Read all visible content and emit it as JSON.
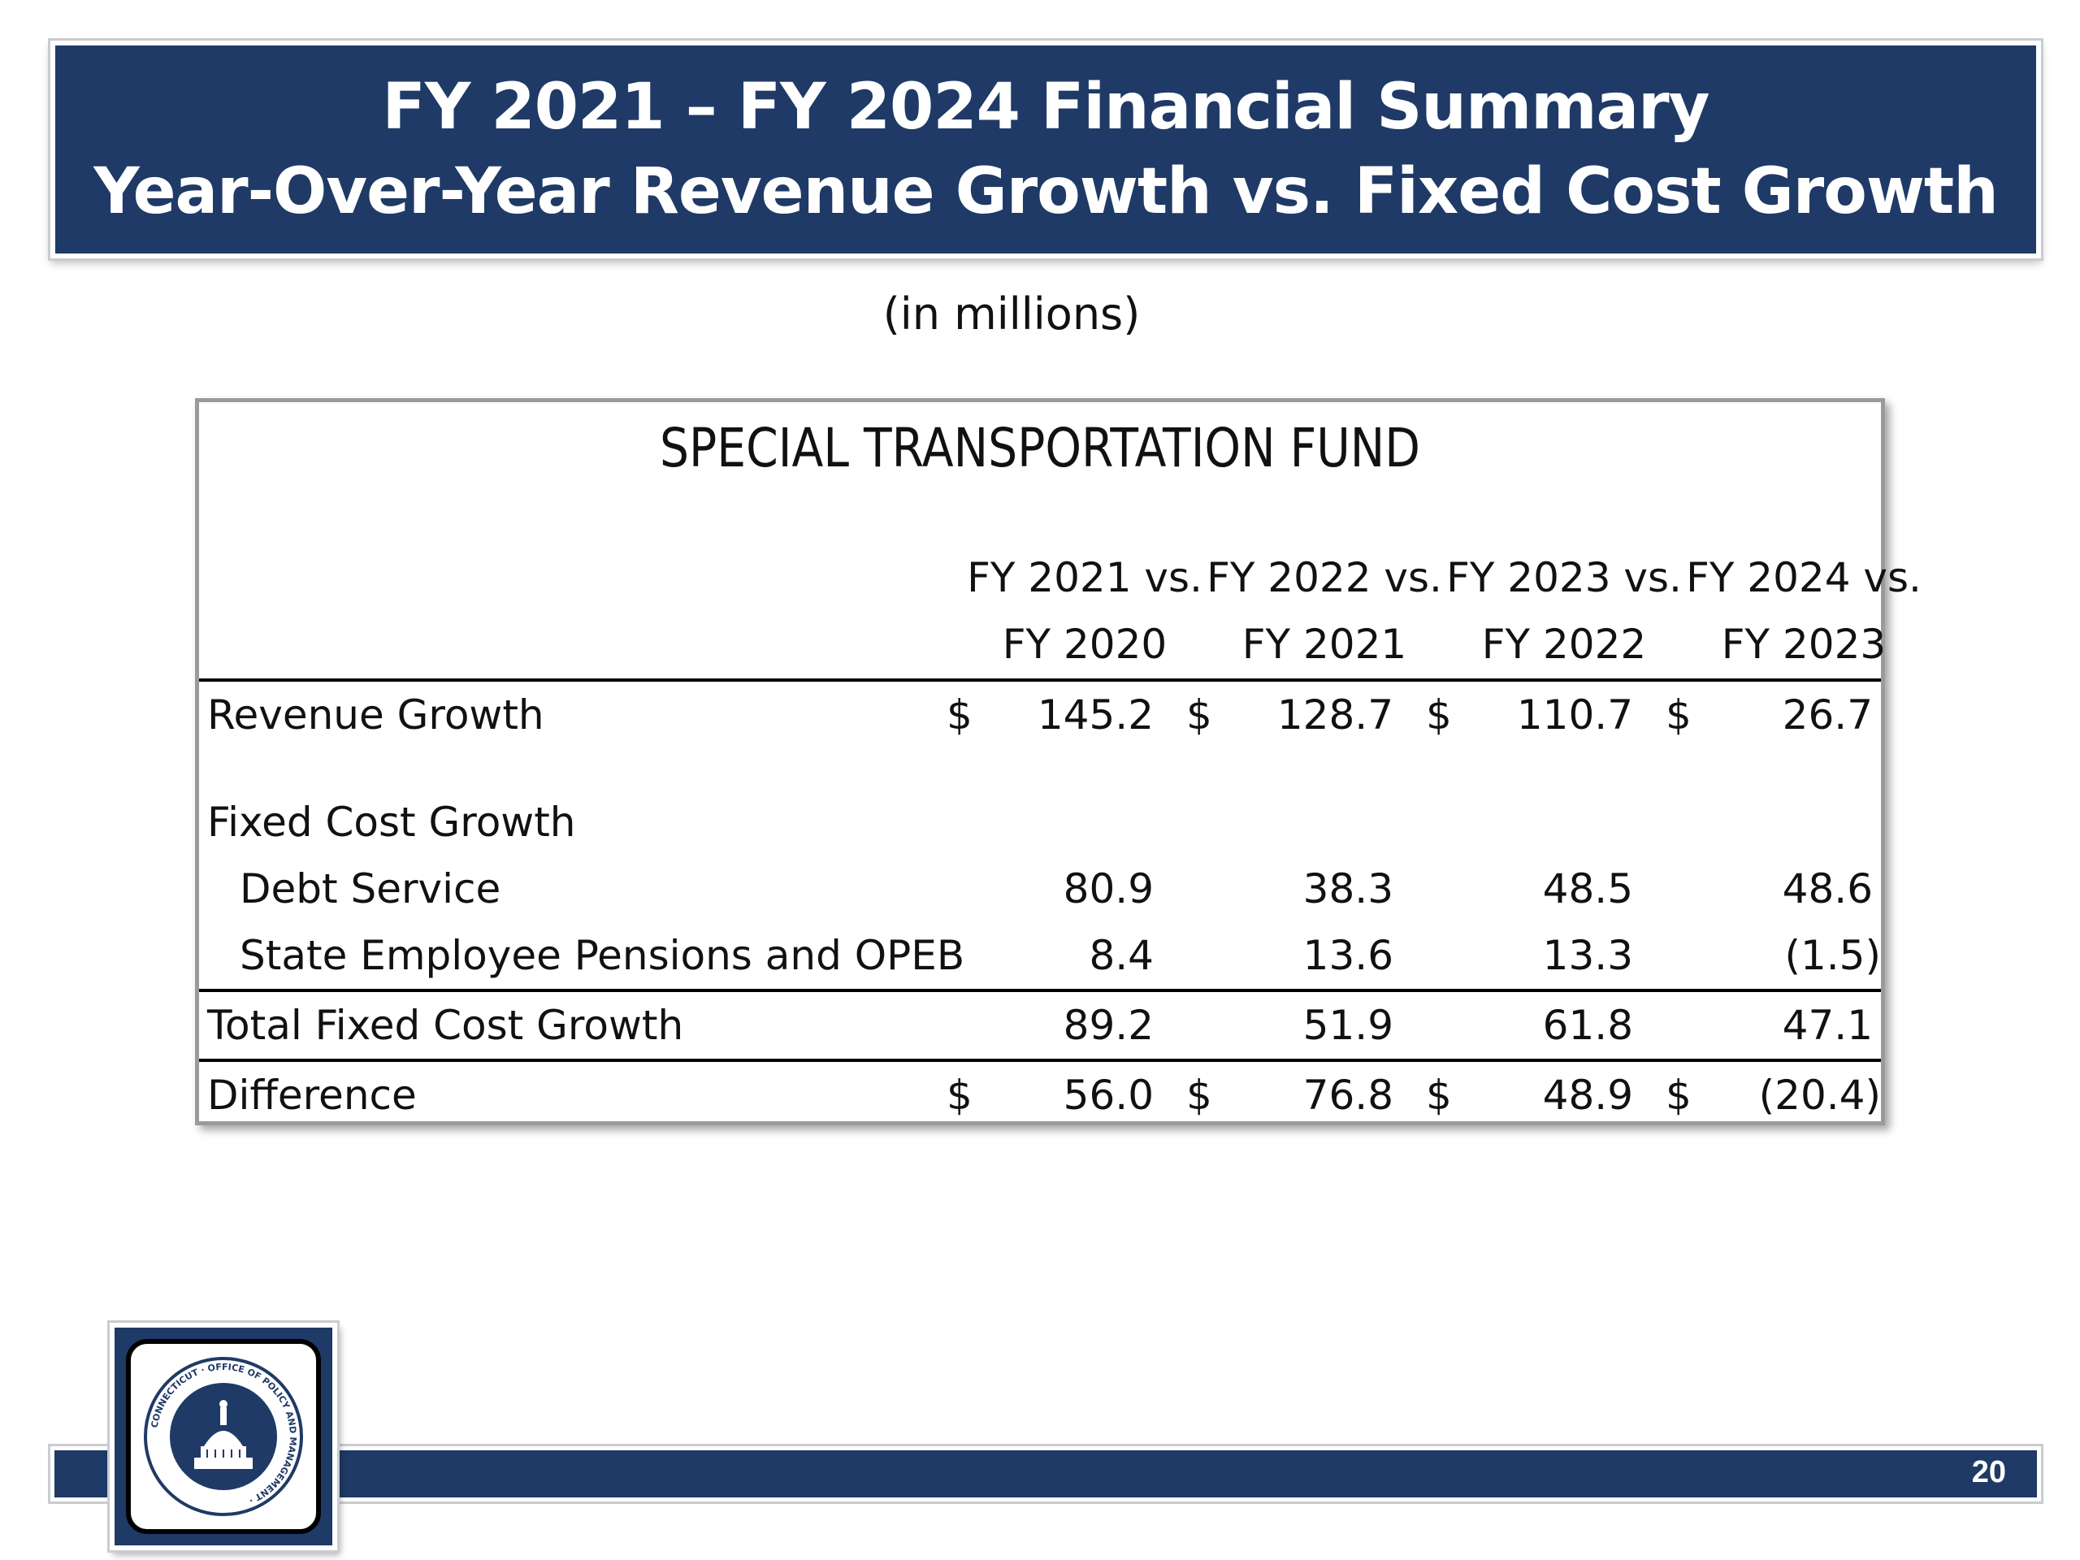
{
  "header": {
    "title_line1": "FY 2021 – FY 2024 Financial Summary",
    "title_line2": "Year-Over-Year Revenue Growth vs. Fixed Cost Growth"
  },
  "units": "(in millions)",
  "table": {
    "title": "SPECIAL TRANSPORTATION FUND",
    "columns": [
      {
        "line1": "FY 2021 vs.",
        "line2": "FY 2020"
      },
      {
        "line1": "FY 2022 vs.",
        "line2": "FY 2021"
      },
      {
        "line1": "FY 2023 vs.",
        "line2": "FY 2022"
      },
      {
        "line1": "FY 2024 vs.",
        "line2": "FY 2023"
      }
    ],
    "rows": {
      "revenue_growth": {
        "label": "Revenue Growth",
        "dollar": "$",
        "values": [
          "145.2",
          "128.7",
          "110.7",
          "26.7"
        ]
      },
      "fixed_cost_growth": {
        "label": "Fixed Cost Growth"
      },
      "debt_service": {
        "label": "Debt Service",
        "values": [
          "80.9",
          "38.3",
          "48.5",
          "48.6"
        ]
      },
      "pensions_opeb": {
        "label": "State Employee Pensions and OPEB",
        "values": [
          "8.4",
          "13.6",
          "13.3",
          "(1.5)"
        ]
      },
      "total_fixed_cost_growth": {
        "label": "Total Fixed Cost Growth",
        "values": [
          "89.2",
          "51.9",
          "61.8",
          "47.1"
        ]
      },
      "difference": {
        "label": "Difference",
        "dollar": "$",
        "values": [
          "56.0",
          "76.8",
          "48.9",
          "(20.4)"
        ]
      }
    }
  },
  "footer": {
    "page_number": "20",
    "logo_text": "CONNECTICUT · OFFICE OF POLICY AND MANAGEMENT"
  },
  "colors": {
    "banner": "#1f3a66",
    "text": "#111111"
  }
}
